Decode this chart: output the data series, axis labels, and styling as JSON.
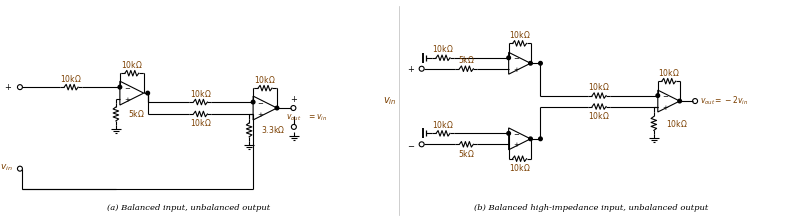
{
  "bg_color": "#ffffff",
  "line_color": "#000000",
  "label_color_brown": "#7b3f00",
  "caption_a": "(a) Balanced input, unbalanced output",
  "caption_b": "(b) Balanced high-impedance input, unbalanced output"
}
